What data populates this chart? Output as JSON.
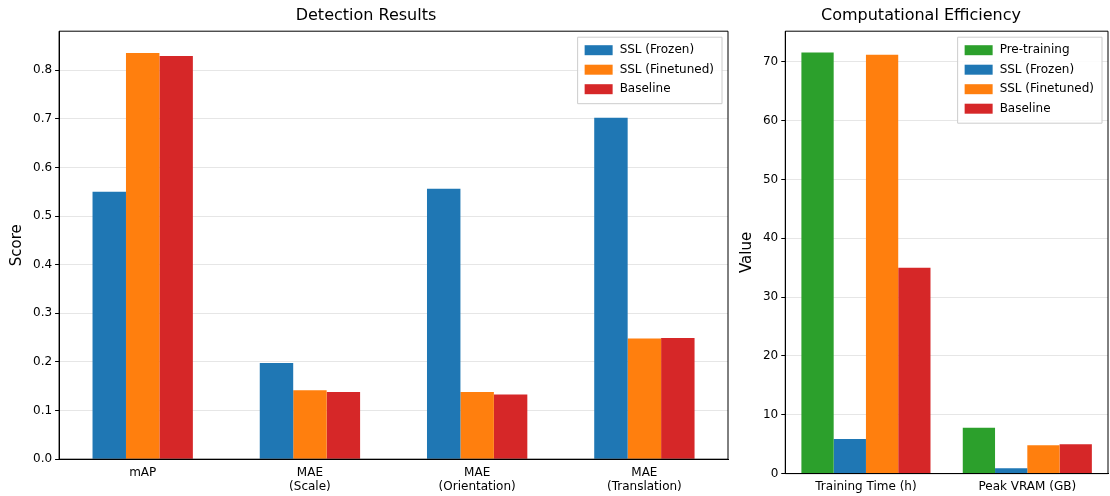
{
  "chart_data": [
    {
      "type": "bar",
      "title": "Detection Results",
      "ylabel": "Score",
      "categories": [
        "mAP",
        "MAE\n(Scale)",
        "MAE\n(Orientation)",
        "MAE\n(Translation)"
      ],
      "series": [
        {
          "name": "SSL (Frozen)",
          "color": "#1f77b4",
          "values": [
            0.55,
            0.198,
            0.556,
            0.702
          ]
        },
        {
          "name": "SSL (Finetuned)",
          "color": "#ff7f0e",
          "values": [
            0.835,
            0.142,
            0.138,
            0.248
          ]
        },
        {
          "name": "Baseline",
          "color": "#d62728",
          "values": [
            0.829,
            0.138,
            0.133,
            0.249
          ]
        }
      ],
      "ylim": [
        0,
        0.88
      ],
      "yticks": [
        {
          "value": 0,
          "label": "0.0"
        },
        0.1,
        0.2,
        0.3,
        0.4,
        0.5,
        0.6,
        0.7,
        0.8
      ],
      "grid": "y",
      "legend": "top right"
    },
    {
      "type": "bar",
      "title": "Computational Efficiency",
      "ylabel": "Value",
      "categories": [
        "Training Time (h)",
        "Peak VRAM (GB)"
      ],
      "series": [
        {
          "name": "Pre-training",
          "color": "#2ca02c",
          "values": [
            71.6,
            7.8
          ]
        },
        {
          "name": "SSL (Frozen)",
          "color": "#1f77b4",
          "values": [
            5.9,
            0.9
          ]
        },
        {
          "name": "SSL (Finetuned)",
          "color": "#ff7f0e",
          "values": [
            71.2,
            4.8
          ]
        },
        {
          "name": "Baseline",
          "color": "#d62728",
          "values": [
            35,
            5
          ]
        }
      ],
      "ylim": [
        0,
        75.2
      ],
      "yticks": [
        0,
        10,
        20,
        30,
        40,
        50,
        60,
        70
      ],
      "grid": "y",
      "legend": "top right"
    }
  ]
}
